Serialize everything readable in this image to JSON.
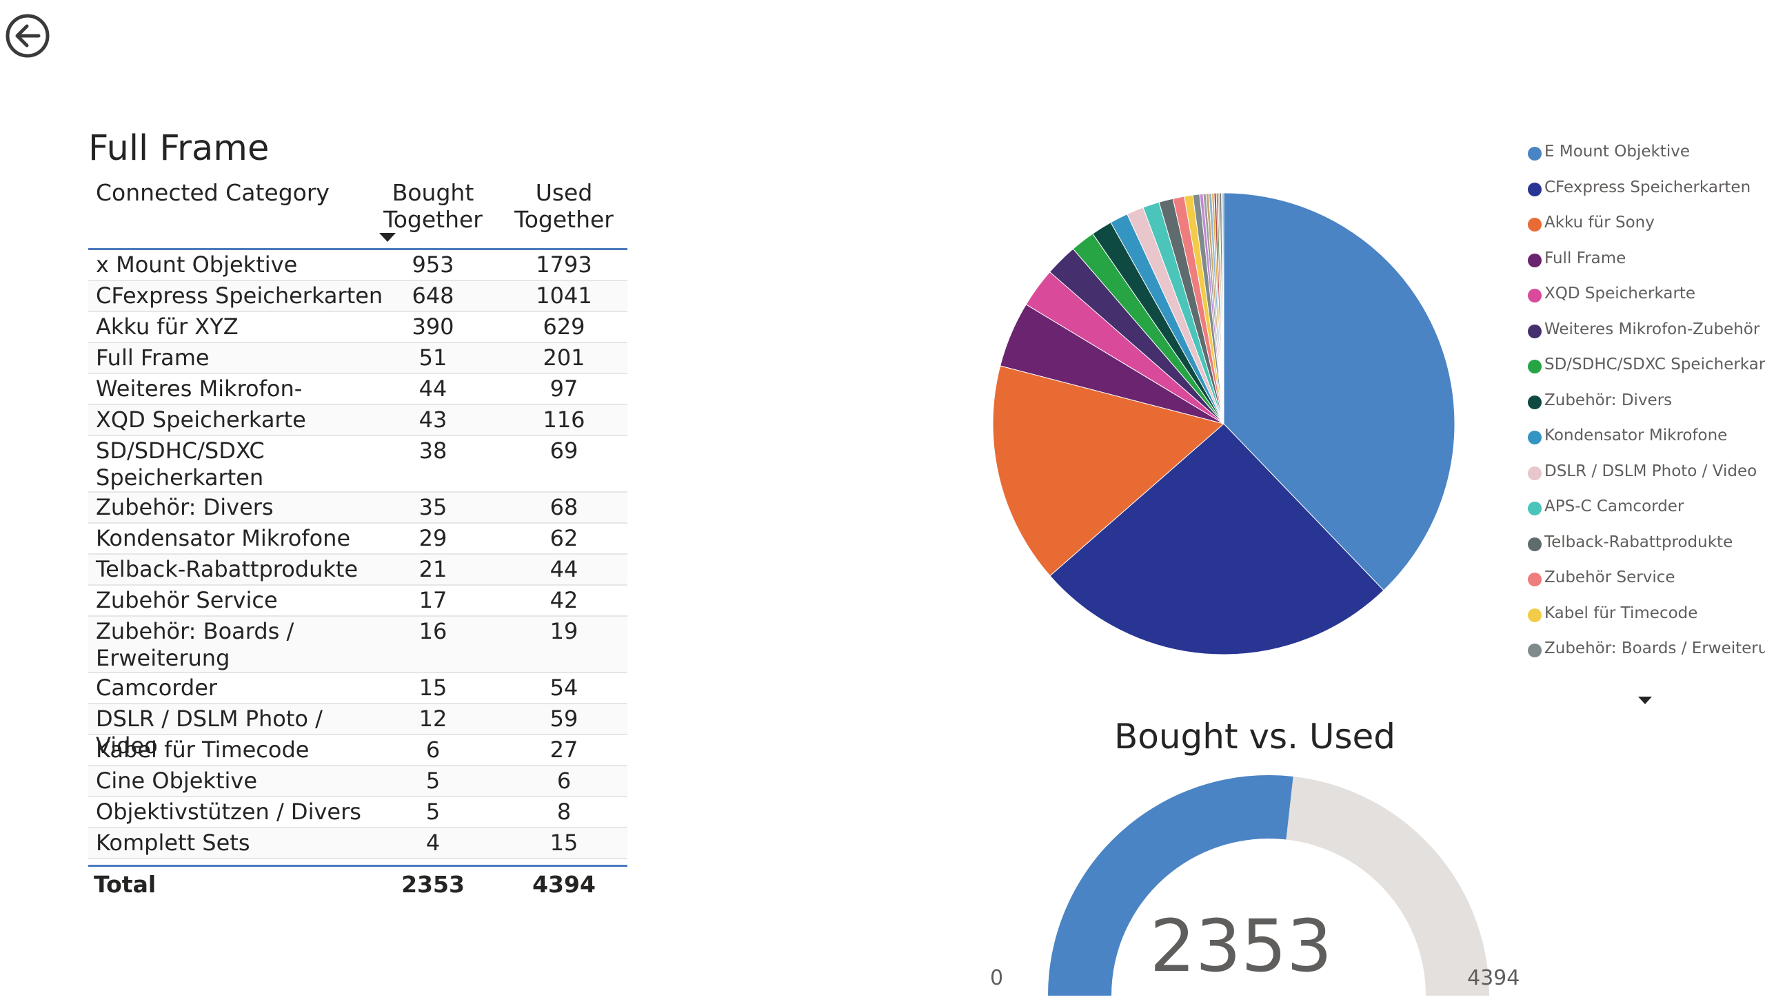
{
  "nav": {
    "back_icon": "back-arrow-circle-icon"
  },
  "table": {
    "title": "Full Frame",
    "headers": {
      "category": "Connected Category",
      "bought": "Bought Together",
      "used": "Used Together"
    },
    "rows": [
      {
        "category": "x Mount Objektive",
        "bought": "953",
        "used": "1793"
      },
      {
        "category": "CFexpress Speicherkarten",
        "bought": "648",
        "used": "1041"
      },
      {
        "category": "Akku für XYZ",
        "bought": "390",
        "used": "629"
      },
      {
        "category": "Full Frame",
        "bought": "51",
        "used": "201"
      },
      {
        "category": "Weiteres Mikrofon-Zubehör",
        "bought": "44",
        "used": "97"
      },
      {
        "category": "XQD Speicherkarte",
        "bought": "43",
        "used": "116"
      },
      {
        "category": "SD/SDHC/SDXC Speicherkarten",
        "bought": "38",
        "used": "69"
      },
      {
        "category": "Zubehör: Divers",
        "bought": "35",
        "used": "68"
      },
      {
        "category": "Kondensator Mikrofone",
        "bought": "29",
        "used": "62"
      },
      {
        "category": "Telback-Rabattprodukte",
        "bought": "21",
        "used": "44"
      },
      {
        "category": "Zubehör Service",
        "bought": "17",
        "used": "42"
      },
      {
        "category": "Zubehör: Boards / Erweiterung",
        "bought": "16",
        "used": "19"
      },
      {
        "category": "Camcorder",
        "bought": "15",
        "used": "54"
      },
      {
        "category": "DSLR / DSLM Photo / Video",
        "bought": "12",
        "used": "59"
      },
      {
        "category": "Kabel für Timecode",
        "bought": "6",
        "used": "27"
      },
      {
        "category": "Cine Objektive",
        "bought": "5",
        "used": "6"
      },
      {
        "category": "Objektivstützen / Divers",
        "bought": "5",
        "used": "8"
      },
      {
        "category": "Komplett Sets",
        "bought": "4",
        "used": "15"
      }
    ],
    "total": {
      "label": "Total",
      "bought": "2353",
      "used": "4394"
    }
  },
  "chart_data": [
    {
      "type": "pie",
      "title": "",
      "legend_position": "right",
      "categories": [
        "E Mount Objektive",
        "CFexpress Speicherkarten",
        "Akku für Sony",
        "Full Frame",
        "XQD Speicherkarte",
        "Weiteres Mikrofon-Zubehör",
        "SD/SDHC/SDXC Speicherkarten",
        "Zubehör: Divers",
        "Kondensator Mikrofone",
        "DSLR / DSLM Photo / Video",
        "APS-C Camcorder",
        "Telback-Rabattprodukte",
        "Zubehör Service",
        "Kabel für Timecode",
        "Zubehör: Boards / Erweiterung"
      ],
      "values": [
        953,
        648,
        390,
        116,
        70,
        57,
        43,
        37,
        32,
        30,
        29,
        25,
        20,
        15,
        12
      ],
      "colors": [
        "#4a84c4",
        "#283593",
        "#e96b34",
        "#6b2470",
        "#d94a9b",
        "#45306d",
        "#27a545",
        "#0f4a42",
        "#3495c2",
        "#e8c6cb",
        "#4bc4b9",
        "#5f6b6d",
        "#ef7d7d",
        "#f2cc47",
        "#7e8a8c"
      ],
      "remainder_values": [
        6,
        5,
        5,
        5,
        4,
        4,
        3,
        3,
        3,
        2,
        2
      ],
      "remainder_colors": [
        "#c08ad6",
        "#9c9c9c",
        "#c6a56e",
        "#8fb6dc",
        "#e0b04e",
        "#b34c4c",
        "#5a8a4a",
        "#d9b07c",
        "#6c6c6c",
        "#2b6b8a",
        "#a86fb0"
      ]
    },
    {
      "type": "gauge",
      "title": "Bought vs. Used",
      "value": 2353,
      "min": 0,
      "max": 4394,
      "value_label": "2353",
      "min_label": "0",
      "max_label": "4394",
      "fill_color": "#4a84c4",
      "track_color": "#e4e0dd"
    }
  ]
}
